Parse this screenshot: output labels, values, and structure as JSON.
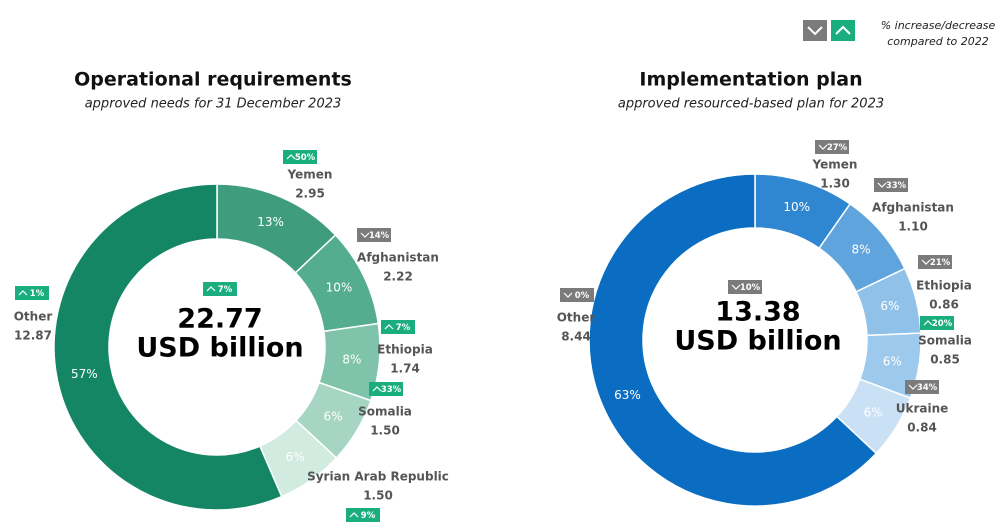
{
  "legend": {
    "lines": [
      "% increase/decrease",
      "compared to 2022"
    ]
  },
  "chart_data": [
    {
      "type": "donut",
      "title": "Operational requirements",
      "subtitle": "approved needs for 31 December 2023",
      "center_value": 22.77,
      "center_unit": "USD billion",
      "center_change": {
        "value": 7,
        "label": "7%",
        "direction": "up"
      },
      "categories": [
        "Yemen",
        "Afghanistan",
        "Ethiopia",
        "Somalia",
        "Syrian Arab Republic",
        "Other"
      ],
      "values": [
        2.95,
        2.22,
        1.74,
        1.5,
        1.5,
        12.87
      ],
      "value_labels": [
        "2.95",
        "2.22",
        "1.74",
        "1.50",
        "1.50",
        "12.87"
      ],
      "shares": [
        13,
        10,
        8,
        6,
        6,
        57
      ],
      "share_labels": [
        "13%",
        "10%",
        "8%",
        "6%",
        "6%",
        "57%"
      ],
      "change_values": [
        50,
        14,
        7,
        33,
        9,
        1
      ],
      "change_labels": [
        "50%",
        "14%",
        "7%",
        "33%",
        "9%",
        "1%"
      ],
      "change_directions": [
        "up",
        "down",
        "up",
        "up",
        "up",
        "up"
      ],
      "colors": [
        "#3f9d7e",
        "#55ad8f",
        "#7fc4aa",
        "#a6d6c3",
        "#d2ebe1",
        "#158664"
      ]
    },
    {
      "type": "donut",
      "title": "Implementation plan",
      "subtitle": "approved resourced-based plan for 2023",
      "center_value": 13.38,
      "center_unit": "USD billion",
      "center_change": {
        "value": 10,
        "label": "10%",
        "direction": "down"
      },
      "categories": [
        "Yemen",
        "Afghanistan",
        "Ethiopia",
        "Somalia",
        "Ukraine",
        "Other"
      ],
      "values": [
        1.3,
        1.1,
        0.86,
        0.85,
        0.84,
        8.44
      ],
      "value_labels": [
        "1.30",
        "1.10",
        "0.86",
        "0.85",
        "0.84",
        "8.44"
      ],
      "shares": [
        10,
        8,
        6,
        6,
        6,
        63
      ],
      "share_labels": [
        "10%",
        "8%",
        "6%",
        "6%",
        "6%",
        "63%"
      ],
      "change_values": [
        27,
        33,
        21,
        20,
        34,
        0
      ],
      "change_labels": [
        "27%",
        "33%",
        "21%",
        "20%",
        "34%",
        "0%"
      ],
      "change_directions": [
        "down",
        "down",
        "down",
        "up",
        "down",
        "down"
      ],
      "colors": [
        "#2f86d1",
        "#5fa4dd",
        "#8fc1e9",
        "#9dc9ed",
        "#cae1f5",
        "#0b6dc1"
      ]
    }
  ]
}
